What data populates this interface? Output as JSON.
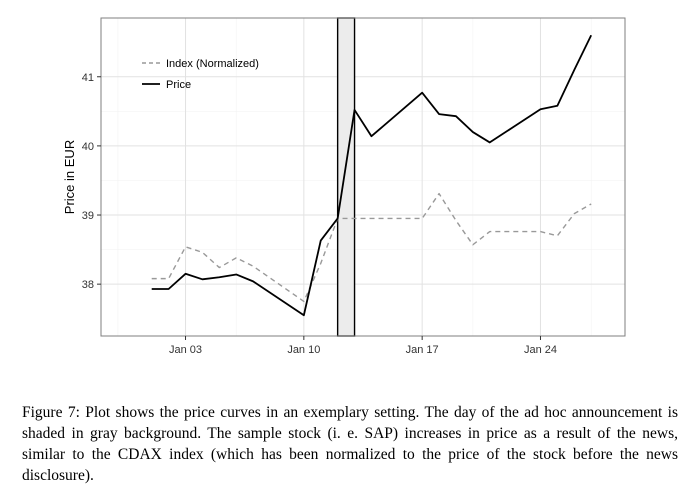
{
  "chart_data": {
    "type": "line",
    "ylabel": "Price in EUR",
    "xlabel": "",
    "title": "",
    "x_ticks": [
      "Jan 03",
      "Jan 10",
      "Jan 17",
      "Jan 24"
    ],
    "y_ticks": [
      38,
      39,
      40,
      41
    ],
    "xlim": [
      "2000-12-29",
      "2001-01-29"
    ],
    "ylim": [
      37.25,
      41.85
    ],
    "grid": true,
    "legend_position": "top-left",
    "highlight": {
      "from": "2001-01-12",
      "to": "2001-01-13",
      "color": "#ececec",
      "meaning": "day of ad hoc announcement"
    },
    "series": [
      {
        "name": "Index (Normalized)",
        "style": "dashed",
        "color": "#999999",
        "points": [
          [
            "2001-01-01",
            38.08
          ],
          [
            "2001-01-02",
            38.08
          ],
          [
            "2001-01-03",
            38.54
          ],
          [
            "2001-01-04",
            38.46
          ],
          [
            "2001-01-05",
            38.24
          ],
          [
            "2001-01-06",
            38.38
          ],
          [
            "2001-01-07",
            38.26
          ],
          [
            "2001-01-10",
            37.75
          ],
          [
            "2001-01-11",
            38.3
          ],
          [
            "2001-01-12",
            38.95
          ],
          [
            "2001-01-13",
            38.95
          ],
          [
            "2001-01-17",
            38.95
          ],
          [
            "2001-01-18",
            39.31
          ],
          [
            "2001-01-19",
            38.92
          ],
          [
            "2001-01-20",
            38.57
          ],
          [
            "2001-01-21",
            38.76
          ],
          [
            "2001-01-24",
            38.76
          ],
          [
            "2001-01-25",
            38.7
          ],
          [
            "2001-01-26",
            39.02
          ],
          [
            "2001-01-27",
            39.16
          ]
        ]
      },
      {
        "name": "Price",
        "style": "solid",
        "color": "#000000",
        "points": [
          [
            "2001-01-01",
            37.93
          ],
          [
            "2001-01-02",
            37.93
          ],
          [
            "2001-01-03",
            38.15
          ],
          [
            "2001-01-04",
            38.07
          ],
          [
            "2001-01-05",
            38.1
          ],
          [
            "2001-01-06",
            38.14
          ],
          [
            "2001-01-07",
            38.04
          ],
          [
            "2001-01-10",
            37.55
          ],
          [
            "2001-01-11",
            38.63
          ],
          [
            "2001-01-12",
            38.95
          ],
          [
            "2001-01-13",
            40.52
          ],
          [
            "2001-01-14",
            40.14
          ],
          [
            "2001-01-17",
            40.77
          ],
          [
            "2001-01-18",
            40.46
          ],
          [
            "2001-01-19",
            40.43
          ],
          [
            "2001-01-20",
            40.2
          ],
          [
            "2001-01-21",
            40.05
          ],
          [
            "2001-01-24",
            40.53
          ],
          [
            "2001-01-25",
            40.58
          ],
          [
            "2001-01-26",
            41.1
          ],
          [
            "2001-01-27",
            41.6
          ]
        ]
      }
    ]
  },
  "caption": "Figure 7: Plot shows the price curves in an exemplary setting. The day of the ad hoc announcement is shaded in gray background. The sample stock (i. e. SAP) increases in price as a result of the news, similar to the CDAX index (which has been normalized to the price of the stock before the news disclosure)."
}
